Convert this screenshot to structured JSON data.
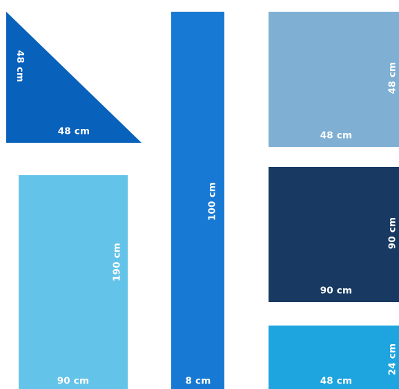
{
  "pieces": {
    "triangle": {
      "width": "48 cm",
      "height": "48 cm",
      "color": "#0861bb"
    },
    "tall_strip": {
      "width": "8 cm",
      "height": "100 cm",
      "color": "#1779d3"
    },
    "square_light": {
      "width": "48 cm",
      "height": "48 cm",
      "color": "#7fb0d3"
    },
    "rect_large": {
      "width": "90 cm",
      "height": "190 cm",
      "color": "#64c3e8"
    },
    "square_dark": {
      "width": "90 cm",
      "height": "90 cm",
      "color": "#183a62"
    },
    "rect_small": {
      "width": "48 cm",
      "height": "24 cm",
      "color": "#1ea4de"
    }
  }
}
